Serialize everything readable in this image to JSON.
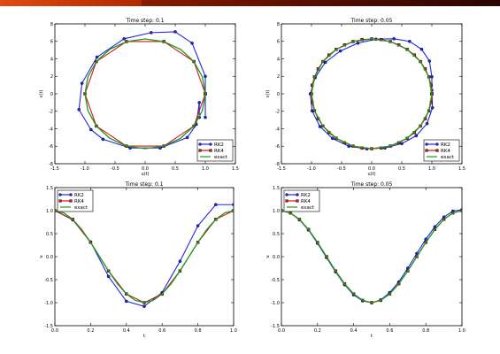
{
  "colors": {
    "rk2": "#2028e0",
    "rk4": "#d01818",
    "exact": "#1c9a1c",
    "topbar": "#8a1c00"
  },
  "chart_data": [
    {
      "type": "line",
      "title": "Time step: 0.1",
      "xlabel": "u(t)",
      "ylabel": "v(t)",
      "xlim": [
        -1.5,
        1.5
      ],
      "ylim": [
        -8,
        8
      ],
      "xticks": [
        "-1.5",
        "-1.0",
        "-0.5",
        "0.0",
        "0.5",
        "1.0",
        "1.5"
      ],
      "yticks": [
        "-8",
        "-6",
        "-4",
        "-2",
        "0",
        "2",
        "4",
        "6",
        "8"
      ],
      "legend": {
        "placement": "bottom-right",
        "entries": [
          "RK2",
          "RK4",
          "exact"
        ]
      },
      "series": [
        {
          "name": "RK2",
          "marker": "circle",
          "x": [
            1.0,
            1.0,
            1.0,
            0.78,
            0.5,
            0.1,
            -0.35,
            -0.8,
            -1.05,
            -1.1,
            -0.9,
            -0.7,
            -0.25,
            0.25,
            0.7,
            0.85,
            0.9,
            0.9
          ],
          "y": [
            -2.7,
            0.0,
            2.0,
            5.8,
            7.1,
            7.0,
            6.3,
            4.2,
            1.2,
            -1.8,
            -4.1,
            -5.2,
            -6.2,
            -6.2,
            -5.0,
            -3.5,
            -1.0,
            -2.7
          ]
        },
        {
          "name": "RK4",
          "marker": "square",
          "x": [
            1.0,
            0.81,
            0.31,
            -0.31,
            -0.81,
            -1.0,
            -0.81,
            -0.31,
            0.31,
            0.81,
            1.0
          ],
          "y": [
            0.0,
            3.69,
            5.98,
            5.98,
            3.69,
            0.0,
            -3.69,
            -5.98,
            -5.98,
            -3.69,
            0.0
          ]
        },
        {
          "name": "exact",
          "marker": "none",
          "x": [
            1.0,
            0.95,
            0.81,
            0.59,
            0.31,
            0.0,
            -0.31,
            -0.59,
            -0.81,
            -0.95,
            -1.0,
            -0.95,
            -0.81,
            -0.59,
            -0.31,
            0.0,
            0.31,
            0.59,
            0.81,
            0.95,
            1.0
          ],
          "y": [
            0.0,
            1.94,
            3.69,
            5.08,
            5.98,
            6.28,
            5.98,
            5.08,
            3.69,
            1.94,
            0.0,
            -1.94,
            -3.69,
            -5.08,
            -5.98,
            -6.28,
            -5.98,
            -5.08,
            -3.69,
            -1.94,
            0.0
          ]
        }
      ]
    },
    {
      "type": "line",
      "title": "Time step: 0.05",
      "xlabel": "u(t)",
      "ylabel": "v(t)",
      "xlim": [
        -1.5,
        1.5
      ],
      "ylim": [
        -8,
        8
      ],
      "xticks": [
        "-1.5",
        "-1.0",
        "-0.5",
        "0.0",
        "0.5",
        "1.0",
        "1.5"
      ],
      "yticks": [
        "-8",
        "-6",
        "-4",
        "-2",
        "0",
        "2",
        "4",
        "6",
        "8"
      ],
      "legend": {
        "placement": "bottom-right",
        "entries": [
          "RK2",
          "RK4",
          "exact"
        ]
      },
      "series": [
        {
          "name": "RK2",
          "marker": "circle",
          "x": [
            1.0,
            1.0,
            0.96,
            0.83,
            0.63,
            0.37,
            0.07,
            -0.23,
            -0.52,
            -0.77,
            -0.94,
            -1.02,
            -0.99,
            -0.86,
            -0.65,
            -0.38,
            -0.08,
            0.22,
            0.5,
            0.74,
            0.92,
            1.01,
            1.0
          ],
          "y": [
            0.0,
            1.95,
            3.75,
            5.1,
            6.0,
            6.3,
            6.25,
            5.8,
            4.9,
            3.6,
            1.85,
            0.0,
            -1.95,
            -3.75,
            -5.1,
            -6.0,
            -6.3,
            -6.2,
            -5.7,
            -4.8,
            -3.4,
            -1.6,
            0.4
          ]
        },
        {
          "name": "RK4",
          "marker": "square",
          "x": [
            1.0,
            0.99,
            0.95,
            0.89,
            0.81,
            0.71,
            0.59,
            0.45,
            0.31,
            0.16,
            0.0,
            -0.16,
            -0.31,
            -0.45,
            -0.59,
            -0.71,
            -0.81,
            -0.89,
            -0.95,
            -0.99,
            -1.0,
            -0.99,
            -0.95,
            -0.89,
            -0.81,
            -0.71,
            -0.59,
            -0.45,
            -0.31,
            -0.16,
            0.0,
            0.16,
            0.31,
            0.45,
            0.59,
            0.71,
            0.81,
            0.89,
            0.95,
            0.99,
            1.0
          ],
          "y": [
            0.0,
            0.98,
            1.94,
            2.85,
            3.69,
            4.44,
            5.08,
            5.6,
            5.98,
            6.2,
            6.28,
            6.2,
            5.98,
            5.6,
            5.08,
            4.44,
            3.69,
            2.85,
            1.94,
            0.98,
            0.0,
            -0.98,
            -1.94,
            -2.85,
            -3.69,
            -4.44,
            -5.08,
            -5.6,
            -5.98,
            -6.2,
            -6.28,
            -6.2,
            -5.98,
            -5.6,
            -5.08,
            -4.44,
            -3.69,
            -2.85,
            -1.94,
            -0.98,
            0.0
          ]
        },
        {
          "name": "exact",
          "marker": "none",
          "x": [
            1.0,
            0.95,
            0.81,
            0.59,
            0.31,
            0.0,
            -0.31,
            -0.59,
            -0.81,
            -0.95,
            -1.0,
            -0.95,
            -0.81,
            -0.59,
            -0.31,
            0.0,
            0.31,
            0.59,
            0.81,
            0.95,
            1.0
          ],
          "y": [
            0.0,
            1.94,
            3.69,
            5.08,
            5.98,
            6.28,
            5.98,
            5.08,
            3.69,
            1.94,
            0.0,
            -1.94,
            -3.69,
            -5.08,
            -5.98,
            -6.28,
            -5.98,
            -5.08,
            -3.69,
            -1.94,
            0.0
          ]
        }
      ]
    },
    {
      "type": "line",
      "title": "Time step: 0.1",
      "xlabel": "t",
      "ylabel": "u",
      "xlim": [
        0.0,
        1.0
      ],
      "ylim": [
        -1.5,
        1.5
      ],
      "xticks": [
        "0.0",
        "0.2",
        "0.4",
        "0.6",
        "0.8",
        "1.0"
      ],
      "yticks": [
        "-1.5",
        "-1.0",
        "-0.5",
        "0.0",
        "0.5",
        "1.0",
        "1.5"
      ],
      "legend": {
        "placement": "top-left",
        "entries": [
          "RK2",
          "RK4",
          "exact"
        ]
      },
      "series": [
        {
          "name": "RK2",
          "marker": "circle",
          "x": [
            0.0,
            0.1,
            0.2,
            0.3,
            0.4,
            0.5,
            0.6,
            0.7,
            0.8,
            0.9,
            1.0
          ],
          "y": [
            1.0,
            0.8,
            0.32,
            -0.43,
            -0.97,
            -1.08,
            -0.78,
            -0.1,
            0.67,
            1.13,
            1.13
          ]
        },
        {
          "name": "RK4",
          "marker": "square",
          "x": [
            0.0,
            0.1,
            0.2,
            0.3,
            0.4,
            0.5,
            0.6,
            0.7,
            0.8,
            0.9,
            1.0
          ],
          "y": [
            1.0,
            0.81,
            0.31,
            -0.31,
            -0.81,
            -1.0,
            -0.81,
            -0.31,
            0.31,
            0.81,
            1.0
          ]
        },
        {
          "name": "exact",
          "marker": "none",
          "x": [
            0.0,
            0.05,
            0.1,
            0.15,
            0.2,
            0.25,
            0.3,
            0.35,
            0.4,
            0.45,
            0.5,
            0.55,
            0.6,
            0.65,
            0.7,
            0.75,
            0.8,
            0.85,
            0.9,
            0.95,
            1.0
          ],
          "y": [
            1.0,
            0.95,
            0.81,
            0.59,
            0.31,
            0.0,
            -0.31,
            -0.59,
            -0.81,
            -0.95,
            -1.0,
            -0.95,
            -0.81,
            -0.59,
            -0.31,
            0.0,
            0.31,
            0.59,
            0.81,
            0.95,
            1.0
          ]
        }
      ]
    },
    {
      "type": "line",
      "title": "Time step: 0.05",
      "xlabel": "t",
      "ylabel": "u",
      "xlim": [
        0.0,
        1.0
      ],
      "ylim": [
        -1.5,
        1.5
      ],
      "xticks": [
        "0.0",
        "0.2",
        "0.4",
        "0.6",
        "0.8",
        "1.0"
      ],
      "yticks": [
        "-1.5",
        "-1.0",
        "-0.5",
        "0.0",
        "0.5",
        "1.0",
        "1.5"
      ],
      "legend": {
        "placement": "top-left",
        "entries": [
          "RK2",
          "RK4",
          "exact"
        ]
      },
      "series": [
        {
          "name": "RK2",
          "marker": "circle",
          "x": [
            0.0,
            0.05,
            0.1,
            0.15,
            0.2,
            0.25,
            0.3,
            0.35,
            0.4,
            0.45,
            0.5,
            0.55,
            0.6,
            0.65,
            0.7,
            0.75,
            0.8,
            0.85,
            0.9,
            0.95,
            1.0
          ],
          "y": [
            1.0,
            0.95,
            0.8,
            0.58,
            0.29,
            -0.02,
            -0.33,
            -0.61,
            -0.83,
            -0.96,
            -1.0,
            -0.94,
            -0.78,
            -0.55,
            -0.25,
            0.07,
            0.38,
            0.65,
            0.86,
            0.99,
            1.02
          ]
        },
        {
          "name": "RK4",
          "marker": "square",
          "x": [
            0.0,
            0.05,
            0.1,
            0.15,
            0.2,
            0.25,
            0.3,
            0.35,
            0.4,
            0.45,
            0.5,
            0.55,
            0.6,
            0.65,
            0.7,
            0.75,
            0.8,
            0.85,
            0.9,
            0.95,
            1.0
          ],
          "y": [
            1.0,
            0.95,
            0.81,
            0.59,
            0.31,
            0.0,
            -0.31,
            -0.59,
            -0.81,
            -0.95,
            -1.0,
            -0.95,
            -0.81,
            -0.59,
            -0.31,
            0.0,
            0.31,
            0.59,
            0.81,
            0.95,
            1.0
          ]
        },
        {
          "name": "exact",
          "marker": "none",
          "x": [
            0.0,
            0.05,
            0.1,
            0.15,
            0.2,
            0.25,
            0.3,
            0.35,
            0.4,
            0.45,
            0.5,
            0.55,
            0.6,
            0.65,
            0.7,
            0.75,
            0.8,
            0.85,
            0.9,
            0.95,
            1.0
          ],
          "y": [
            1.0,
            0.95,
            0.81,
            0.59,
            0.31,
            0.0,
            -0.31,
            -0.59,
            -0.81,
            -0.95,
            -1.0,
            -0.95,
            -0.81,
            -0.59,
            -0.31,
            0.0,
            0.31,
            0.59,
            0.81,
            0.95,
            1.0
          ]
        }
      ]
    }
  ]
}
